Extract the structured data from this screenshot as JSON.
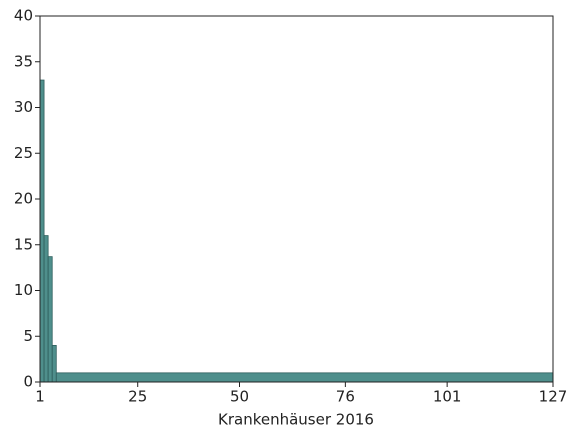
{
  "chart_data": {
    "type": "histogram",
    "x_label": "Krankenhäuser 2016",
    "bins": [
      1,
      2,
      3,
      4,
      5,
      127
    ],
    "counts": [
      33,
      16,
      13.7,
      4,
      1
    ],
    "color": "#4f8f8c",
    "xlim": [
      1,
      127
    ],
    "xticks": [
      1,
      25,
      50,
      76,
      101,
      127
    ],
    "ylim": [
      0,
      40
    ],
    "yticks": [
      0,
      5,
      10,
      15,
      20,
      25,
      30,
      35,
      40
    ],
    "grid": false
  }
}
